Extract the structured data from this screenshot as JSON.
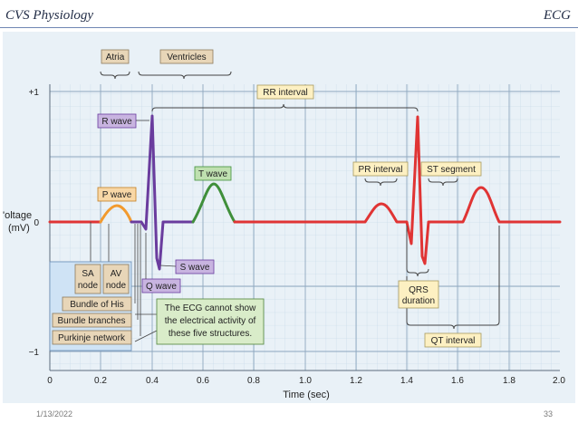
{
  "slide": {
    "header_left": "CVS Physiology",
    "header_right": "ECG",
    "footer_date": "1/13/2022",
    "footer_page": "33"
  },
  "diagram": {
    "y_label_line1": "'oltage",
    "y_label_line2": "(mV)",
    "x_label": "Time (sec)",
    "y_ticks": [
      "+1",
      "0",
      "−1"
    ],
    "x_ticks": [
      "0",
      "0.2",
      "0.4",
      "0.6",
      "0.8",
      "1.0",
      "1.2",
      "1.4",
      "1.6",
      "1.8",
      "2.0"
    ],
    "labels": {
      "atria": "Atria",
      "ventricles": "Ventricles",
      "rr_interval": "RR interval",
      "r_wave": "R wave",
      "t_wave": "T wave",
      "p_wave": "P wave",
      "s_wave": "S wave",
      "q_wave": "Q wave",
      "pr_interval": "PR interval",
      "st_segment": "ST segment",
      "qrs_line1": "QRS",
      "qrs_line2": "duration",
      "qt_interval": "QT interval",
      "sa_line1": "SA",
      "sa_line2": "node",
      "av_line1": "AV",
      "av_line2": "node",
      "bundle_his": "Bundle of His",
      "bundle_branches": "Bundle branches",
      "purkinje": "Purkinje network",
      "note_line1": "The ECG cannot show",
      "note_line2": "the electrical activity of",
      "note_line3": "these five structures."
    },
    "colors": {
      "baseline": "#e03434",
      "p_wave": "#f29a2e",
      "qrs": "#6a3c9e",
      "t_wave": "#3f8f3a",
      "grid_minor": "#c2d6e6",
      "grid_major": "#8fa8bf",
      "label_tan": "#e8d6b8",
      "label_purple": "#c8b4e0",
      "label_green": "#bfe0b0",
      "label_orange": "#f8d7a6",
      "label_yellow": "#fdf0c2",
      "label_blue": "#cfe3f5",
      "note_green": "#d9ecc9"
    }
  }
}
